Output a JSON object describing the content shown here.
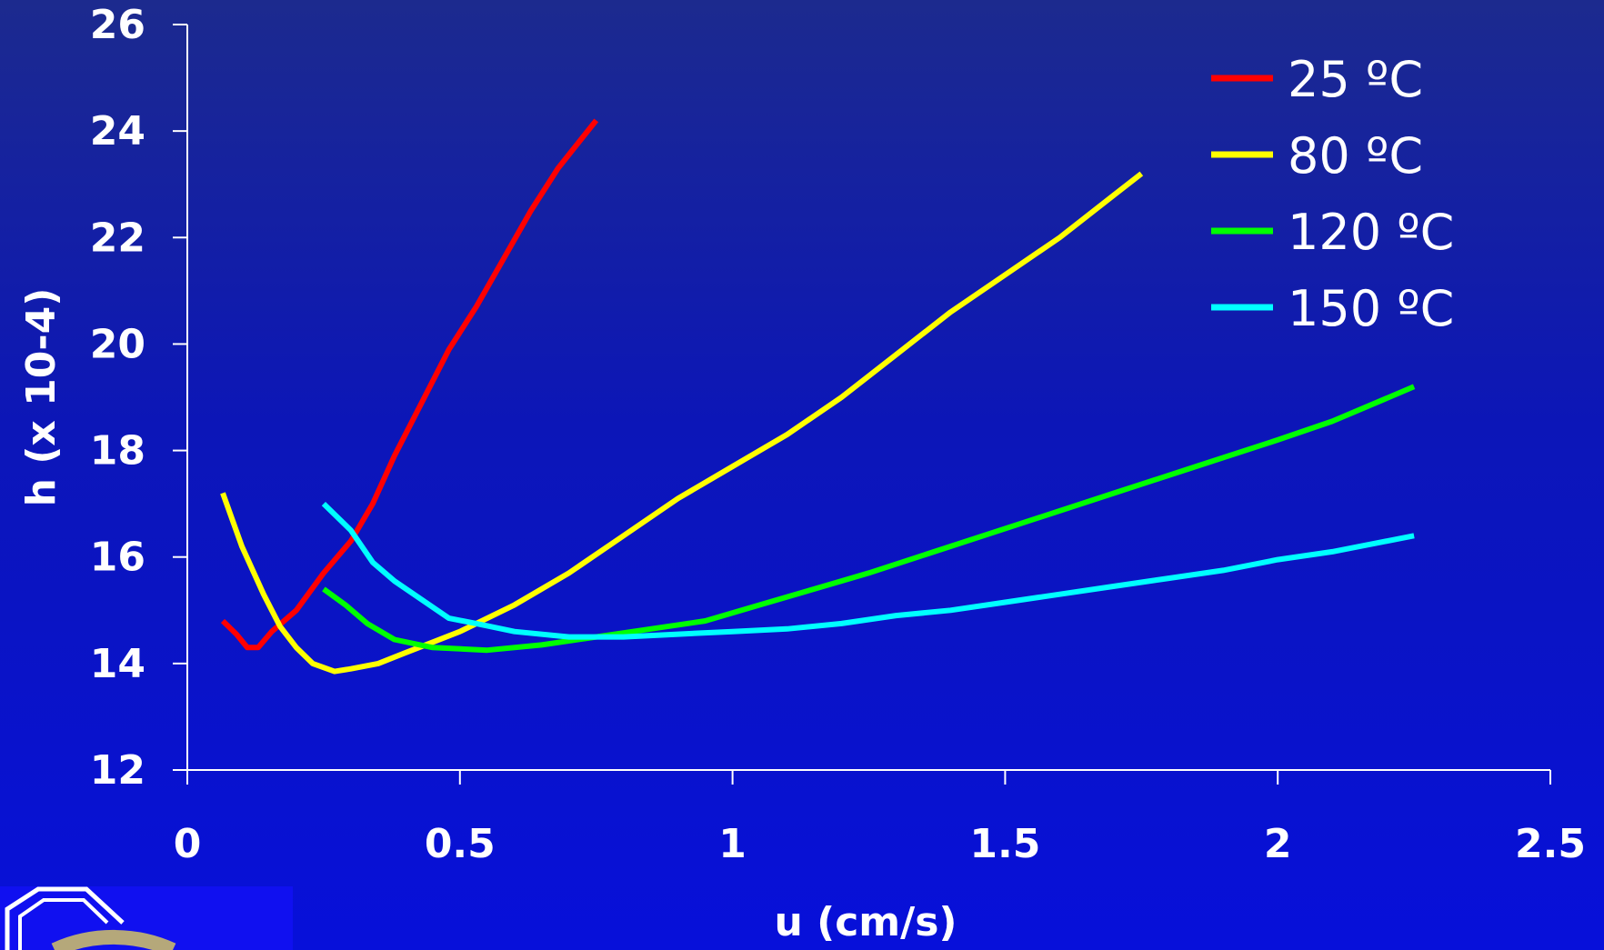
{
  "chart_data": {
    "type": "line",
    "xlabel": "u (cm/s)",
    "ylabel": "h (x 10-4)",
    "xlim": [
      0,
      2.5
    ],
    "ylim": [
      12,
      26
    ],
    "x_ticks": [
      "0",
      "0.5",
      "1",
      "1.5",
      "2",
      "2.5"
    ],
    "y_ticks": [
      "12",
      "14",
      "16",
      "18",
      "20",
      "22",
      "24",
      "26"
    ],
    "grid": false,
    "legend_position": "top-right",
    "series": [
      {
        "name": "25 ºC",
        "color": "#ff0000",
        "points": [
          [
            0.065,
            14.8
          ],
          [
            0.09,
            14.55
          ],
          [
            0.11,
            14.3
          ],
          [
            0.13,
            14.3
          ],
          [
            0.155,
            14.6
          ],
          [
            0.2,
            15.0
          ],
          [
            0.25,
            15.7
          ],
          [
            0.3,
            16.3
          ],
          [
            0.34,
            17.0
          ],
          [
            0.38,
            17.9
          ],
          [
            0.43,
            18.9
          ],
          [
            0.48,
            19.9
          ],
          [
            0.53,
            20.7
          ],
          [
            0.58,
            21.6
          ],
          [
            0.63,
            22.5
          ],
          [
            0.68,
            23.3
          ],
          [
            0.75,
            24.2
          ]
        ]
      },
      {
        "name": "80 ºC",
        "color": "#ffff00",
        "points": [
          [
            0.065,
            17.2
          ],
          [
            0.1,
            16.2
          ],
          [
            0.14,
            15.3
          ],
          [
            0.17,
            14.7
          ],
          [
            0.2,
            14.3
          ],
          [
            0.23,
            14.0
          ],
          [
            0.27,
            13.85
          ],
          [
            0.3,
            13.9
          ],
          [
            0.35,
            14.0
          ],
          [
            0.4,
            14.2
          ],
          [
            0.45,
            14.4
          ],
          [
            0.5,
            14.6
          ],
          [
            0.6,
            15.1
          ],
          [
            0.7,
            15.7
          ],
          [
            0.8,
            16.4
          ],
          [
            0.9,
            17.1
          ],
          [
            1.0,
            17.7
          ],
          [
            1.1,
            18.3
          ],
          [
            1.2,
            19.0
          ],
          [
            1.3,
            19.8
          ],
          [
            1.4,
            20.6
          ],
          [
            1.5,
            21.3
          ],
          [
            1.6,
            22.0
          ],
          [
            1.7,
            22.8
          ],
          [
            1.75,
            23.2
          ]
        ]
      },
      {
        "name": "120 ºC",
        "color": "#00ff00",
        "points": [
          [
            0.25,
            15.4
          ],
          [
            0.29,
            15.1
          ],
          [
            0.33,
            14.75
          ],
          [
            0.38,
            14.45
          ],
          [
            0.45,
            14.3
          ],
          [
            0.55,
            14.25
          ],
          [
            0.65,
            14.35
          ],
          [
            0.75,
            14.5
          ],
          [
            0.85,
            14.65
          ],
          [
            0.95,
            14.8
          ],
          [
            1.05,
            15.1
          ],
          [
            1.15,
            15.4
          ],
          [
            1.25,
            15.7
          ],
          [
            1.4,
            16.2
          ],
          [
            1.55,
            16.7
          ],
          [
            1.7,
            17.2
          ],
          [
            1.85,
            17.7
          ],
          [
            2.0,
            18.2
          ],
          [
            2.1,
            18.55
          ],
          [
            2.25,
            19.2
          ]
        ]
      },
      {
        "name": "150 ºC",
        "color": "#00ffff",
        "points": [
          [
            0.25,
            17.0
          ],
          [
            0.3,
            16.5
          ],
          [
            0.34,
            15.9
          ],
          [
            0.38,
            15.55
          ],
          [
            0.43,
            15.2
          ],
          [
            0.48,
            14.85
          ],
          [
            0.53,
            14.75
          ],
          [
            0.6,
            14.6
          ],
          [
            0.7,
            14.5
          ],
          [
            0.8,
            14.5
          ],
          [
            0.9,
            14.55
          ],
          [
            1.0,
            14.6
          ],
          [
            1.1,
            14.65
          ],
          [
            1.2,
            14.75
          ],
          [
            1.3,
            14.9
          ],
          [
            1.4,
            15.0
          ],
          [
            1.5,
            15.15
          ],
          [
            1.6,
            15.3
          ],
          [
            1.7,
            15.45
          ],
          [
            1.8,
            15.6
          ],
          [
            1.9,
            15.75
          ],
          [
            2.0,
            15.95
          ],
          [
            2.1,
            16.1
          ],
          [
            2.25,
            16.4
          ]
        ]
      }
    ]
  },
  "logo": {
    "color": "#b5a87a"
  }
}
